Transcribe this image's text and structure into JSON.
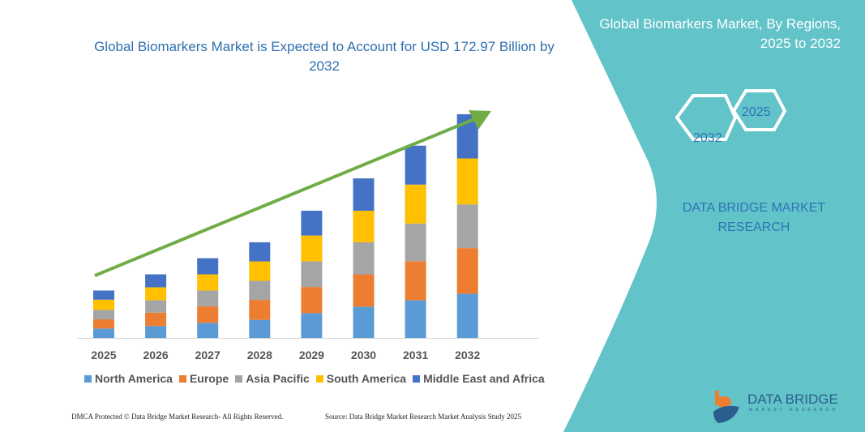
{
  "header": {
    "title": "Global Biomarkers Market is Expected to Account for USD 172.97 Billion by 2032"
  },
  "side_panel": {
    "title": "Global Biomarkers Market, By Regions, 2025 to 2032",
    "hex_years": [
      "2025",
      "2032"
    ],
    "brand_text": "DATA BRIDGE MARKET RESEARCH",
    "logo_text": "DATA BRIDGE",
    "logo_sub": "MARKET RESEARCH",
    "color": "#62c3c9"
  },
  "footer": {
    "left": "DMCA Protected © Data Bridge Market Research- All Rights Reserved.",
    "right": "Source: Data Bridge Market Research Market Analysis Study 2025"
  },
  "chart_data": {
    "type": "bar",
    "stacked": true,
    "title": "Global Biomarkers Market is Expected to Account for USD 172.97 Billion by 2032",
    "categories": [
      "2025",
      "2026",
      "2027",
      "2028",
      "2029",
      "2030",
      "2031",
      "2032"
    ],
    "series": [
      {
        "name": "North America",
        "color": "#5b9bd5",
        "values": [
          7.3,
          9.2,
          11.7,
          14.0,
          19.2,
          24.2,
          29.2,
          34.2
        ]
      },
      {
        "name": "Europe",
        "color": "#ed7d31",
        "values": [
          7.1,
          10.4,
          12.7,
          15.4,
          20.2,
          25.0,
          30.1,
          35.3
        ]
      },
      {
        "name": "Asia Pacific",
        "color": "#a5a5a5",
        "values": [
          7.3,
          9.6,
          12.3,
          14.8,
          19.8,
          24.8,
          29.2,
          33.8
        ]
      },
      {
        "name": "South America",
        "color": "#ffc000",
        "values": [
          7.9,
          10.0,
          12.5,
          15.0,
          20.0,
          24.4,
          30.1,
          35.5
        ]
      },
      {
        "name": "Middle East and Africa",
        "color": "#4472c4",
        "values": [
          7.1,
          10.0,
          12.5,
          14.8,
          19.2,
          25.0,
          30.1,
          34.2
        ]
      }
    ],
    "ylim": [
      0,
      172.97
    ],
    "grid": false,
    "legend": "bottom",
    "trend_arrow_color": "#70ad47"
  }
}
